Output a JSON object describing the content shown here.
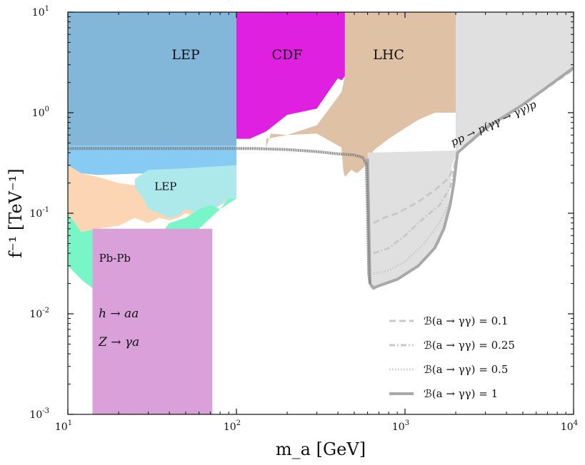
{
  "chart_data": {
    "type": "area",
    "xscale": "log",
    "yscale": "log",
    "xlim": [
      10,
      10000
    ],
    "ylim": [
      0.001,
      10
    ],
    "xlabel": "m_a  [GeV]",
    "ylabel": "f⁻¹  [TeV⁻¹]",
    "x_ticks": [
      {
        "value": 10,
        "base": "10",
        "exp": "1"
      },
      {
        "value": 100,
        "base": "10",
        "exp": "2"
      },
      {
        "value": 1000,
        "base": "10",
        "exp": "3"
      },
      {
        "value": 10000,
        "base": "10",
        "exp": "4"
      }
    ],
    "y_ticks": [
      {
        "value": 0.001,
        "base": "10",
        "exp": "-3"
      },
      {
        "value": 0.01,
        "base": "10",
        "exp": "-2"
      },
      {
        "value": 0.1,
        "base": "10",
        "exp": "-1"
      },
      {
        "value": 1,
        "base": "10",
        "exp": "0"
      },
      {
        "value": 10,
        "base": "10",
        "exp": "1"
      }
    ],
    "regions": [
      {
        "name": "LEP",
        "label": "LEP",
        "color": "#82b7d9",
        "points": [
          [
            10,
            10
          ],
          [
            100,
            10
          ],
          [
            100,
            0.47
          ],
          [
            10,
            0.47
          ]
        ]
      },
      {
        "name": "LEP-lower-blue",
        "label": "",
        "color": "#87cbf5",
        "points": [
          [
            10,
            0.47
          ],
          [
            100,
            0.47
          ],
          [
            100,
            0.3
          ],
          [
            60,
            0.27
          ],
          [
            30,
            0.25
          ],
          [
            15,
            0.24
          ],
          [
            12,
            0.25
          ],
          [
            10,
            0.3
          ]
        ]
      },
      {
        "name": "CDF",
        "label": "CDF",
        "color": "#e020e0",
        "points": [
          [
            100,
            10
          ],
          [
            440,
            10
          ],
          [
            440,
            2.3
          ],
          [
            420,
            2.1
          ],
          [
            400,
            2.2
          ],
          [
            300,
            1.1
          ],
          [
            200,
            0.95
          ],
          [
            150,
            0.65
          ],
          [
            120,
            0.55
          ],
          [
            100,
            0.55
          ]
        ]
      },
      {
        "name": "LHC",
        "label": "LHC",
        "color": "#dfc1a5",
        "points": [
          [
            440,
            10
          ],
          [
            2000,
            10
          ],
          [
            2000,
            1.0
          ],
          [
            1500,
            1.0
          ],
          [
            1200,
            0.85
          ],
          [
            1000,
            0.7
          ],
          [
            800,
            0.55
          ],
          [
            650,
            0.42
          ],
          [
            600,
            0.31
          ],
          [
            560,
            0.28
          ],
          [
            520,
            0.25
          ],
          [
            480,
            0.27
          ],
          [
            440,
            0.23
          ],
          [
            430,
            0.27
          ],
          [
            420,
            0.45
          ],
          [
            300,
            0.62
          ],
          [
            200,
            0.6
          ],
          [
            160,
            0.62
          ],
          [
            150,
            0.45
          ],
          [
            150,
            0.55
          ],
          [
            200,
            0.6
          ],
          [
            300,
            0.75
          ],
          [
            420,
            1.6
          ],
          [
            440,
            2.3
          ]
        ]
      },
      {
        "name": "photon-coupling-light",
        "label": "",
        "color": "#fcd6b4",
        "points": [
          [
            10,
            0.3
          ],
          [
            12,
            0.25
          ],
          [
            15,
            0.23
          ],
          [
            20,
            0.2
          ],
          [
            25,
            0.19
          ],
          [
            30,
            0.18
          ],
          [
            40,
            0.2
          ],
          [
            50,
            0.2
          ],
          [
            60,
            0.22
          ],
          [
            70,
            0.27
          ],
          [
            80,
            0.28
          ],
          [
            90,
            0.22
          ],
          [
            100,
            0.3
          ],
          [
            100,
            0.14
          ],
          [
            90,
            0.13
          ],
          [
            80,
            0.12
          ],
          [
            70,
            0.1
          ],
          [
            60,
            0.09
          ],
          [
            50,
            0.1
          ],
          [
            45,
            0.09
          ],
          [
            40,
            0.085
          ],
          [
            35,
            0.09
          ],
          [
            30,
            0.08
          ],
          [
            25,
            0.09
          ],
          [
            20,
            0.075
          ],
          [
            15,
            0.07
          ],
          [
            12,
            0.065
          ],
          [
            10,
            0.06
          ]
        ]
      },
      {
        "name": "LEP-light-cyan",
        "label": "LEP",
        "color": "#ade9ea",
        "points": [
          [
            30,
            0.27
          ],
          [
            50,
            0.28
          ],
          [
            70,
            0.29
          ],
          [
            100,
            0.3
          ],
          [
            100,
            0.14
          ],
          [
            90,
            0.14
          ],
          [
            80,
            0.12
          ],
          [
            70,
            0.11
          ],
          [
            60,
            0.1
          ],
          [
            50,
            0.11
          ],
          [
            45,
            0.095
          ],
          [
            40,
            0.09
          ],
          [
            35,
            0.1
          ],
          [
            30,
            0.11
          ],
          [
            28,
            0.14
          ],
          [
            25,
            0.18
          ],
          [
            25,
            0.22
          ]
        ]
      },
      {
        "name": "Pb-Pb",
        "label": "Pb-Pb",
        "color": "#79f6c8",
        "points": [
          [
            10,
            0.1
          ],
          [
            12,
            0.065
          ],
          [
            15,
            0.07
          ],
          [
            20,
            0.07
          ],
          [
            25,
            0.06
          ],
          [
            30,
            0.07
          ],
          [
            35,
            0.06
          ],
          [
            40,
            0.08
          ],
          [
            50,
            0.09
          ],
          [
            60,
            0.11
          ],
          [
            70,
            0.12
          ],
          [
            80,
            0.11
          ],
          [
            90,
            0.14
          ],
          [
            100,
            0.14
          ],
          [
            80,
            0.11
          ],
          [
            60,
            0.07
          ],
          [
            45,
            0.05
          ],
          [
            35,
            0.035
          ],
          [
            25,
            0.025
          ],
          [
            18,
            0.02
          ],
          [
            14,
            0.018
          ],
          [
            12,
            0.022
          ],
          [
            10,
            0.03
          ]
        ]
      },
      {
        "name": "h-Z-decays",
        "label": "",
        "color": "#d9a0da",
        "points": [
          [
            14,
            0.07
          ],
          [
            72,
            0.07
          ],
          [
            72,
            0.001
          ],
          [
            14,
            0.001
          ]
        ]
      },
      {
        "name": "LHC-gamma-gamma-light",
        "label": "",
        "color": "#e0e0e0",
        "points": [
          [
            2000,
            10
          ],
          [
            10000,
            10
          ],
          [
            10000,
            2.8
          ],
          [
            5000,
            1.2
          ],
          [
            3000,
            0.7
          ],
          [
            2500,
            0.5
          ],
          [
            2100,
            0.45
          ],
          [
            1900,
            0.3
          ],
          [
            1800,
            0.1
          ],
          [
            1600,
            0.05
          ],
          [
            1200,
            0.03
          ],
          [
            900,
            0.022
          ],
          [
            700,
            0.019
          ],
          [
            620,
            0.018
          ],
          [
            600,
            0.4
          ],
          [
            2000,
            0.42
          ]
        ]
      }
    ],
    "series": [
      {
        "name": "B(a→γγ)=0.1",
        "style": "dashed",
        "color": "#c9c9c9",
        "points": [
          [
            650,
            0.08
          ],
          [
            750,
            0.09
          ],
          [
            900,
            0.1
          ],
          [
            1200,
            0.13
          ],
          [
            1500,
            0.17
          ],
          [
            1800,
            0.22
          ],
          [
            1950,
            0.28
          ],
          [
            2050,
            0.4
          ],
          [
            3000,
            0.68
          ],
          [
            5000,
            1.2
          ],
          [
            10000,
            2.7
          ]
        ]
      },
      {
        "name": "B(a→γγ)=0.25",
        "style": "dashdot",
        "color": "#c9c9c9",
        "points": [
          [
            650,
            0.04
          ],
          [
            800,
            0.045
          ],
          [
            1000,
            0.06
          ],
          [
            1300,
            0.09
          ],
          [
            1600,
            0.12
          ],
          [
            1850,
            0.18
          ],
          [
            1950,
            0.25
          ],
          [
            2050,
            0.4
          ]
        ]
      },
      {
        "name": "B(a→γγ)=0.5",
        "style": "dotted",
        "color": "#c9c9c9",
        "points": [
          [
            650,
            0.025
          ],
          [
            800,
            0.027
          ],
          [
            1000,
            0.033
          ],
          [
            1300,
            0.05
          ],
          [
            1600,
            0.08
          ],
          [
            1850,
            0.13
          ],
          [
            1950,
            0.2
          ],
          [
            2050,
            0.4
          ]
        ]
      },
      {
        "name": "B(a→γγ)=1",
        "style": "solid",
        "color": "#a9a9a9",
        "points": [
          [
            600,
            0.35
          ],
          [
            620,
            0.02
          ],
          [
            650,
            0.018
          ],
          [
            700,
            0.019
          ],
          [
            900,
            0.022
          ],
          [
            1200,
            0.03
          ],
          [
            1500,
            0.045
          ],
          [
            1700,
            0.07
          ],
          [
            1850,
            0.12
          ],
          [
            1950,
            0.2
          ],
          [
            2050,
            0.4
          ],
          [
            3000,
            0.7
          ],
          [
            5000,
            1.2
          ],
          [
            10000,
            2.8
          ]
        ]
      },
      {
        "name": "gg-boundary",
        "style": "dense-dotted",
        "color": "#808080",
        "points": [
          [
            10,
            0.44
          ],
          [
            30,
            0.44
          ],
          [
            60,
            0.44
          ],
          [
            100,
            0.44
          ],
          [
            130,
            0.44
          ],
          [
            200,
            0.43
          ],
          [
            300,
            0.41
          ],
          [
            400,
            0.39
          ],
          [
            500,
            0.38
          ],
          [
            560,
            0.36
          ],
          [
            590,
            0.31
          ],
          [
            600,
            0.1
          ],
          [
            610,
            0.025
          ],
          [
            620,
            0.02
          ]
        ]
      }
    ],
    "region_labels": [
      {
        "text": "LEP",
        "x": 50,
        "y": 3.4
      },
      {
        "text": "CDF",
        "x": 200,
        "y": 3.4
      },
      {
        "text": "LHC",
        "x": 800,
        "y": 3.4
      },
      {
        "text": "LEP",
        "x": 38,
        "y": 0.17
      },
      {
        "text": "Pb-Pb",
        "x": 19,
        "y": 0.033
      }
    ],
    "process_labels": [
      "h → aa",
      "Z → γa"
    ],
    "curve_label": "pp → p(γγ → γγ)p",
    "legend": {
      "placement": "bottom-right",
      "entries": [
        {
          "label": "ℬ(a → γγ) = 0.1",
          "style": "dashed"
        },
        {
          "label": "ℬ(a → γγ) = 0.25",
          "style": "dashdot"
        },
        {
          "label": "ℬ(a → γγ) = 0.5",
          "style": "dotted"
        },
        {
          "label": "ℬ(a → γγ) = 1",
          "style": "solid"
        }
      ]
    }
  }
}
